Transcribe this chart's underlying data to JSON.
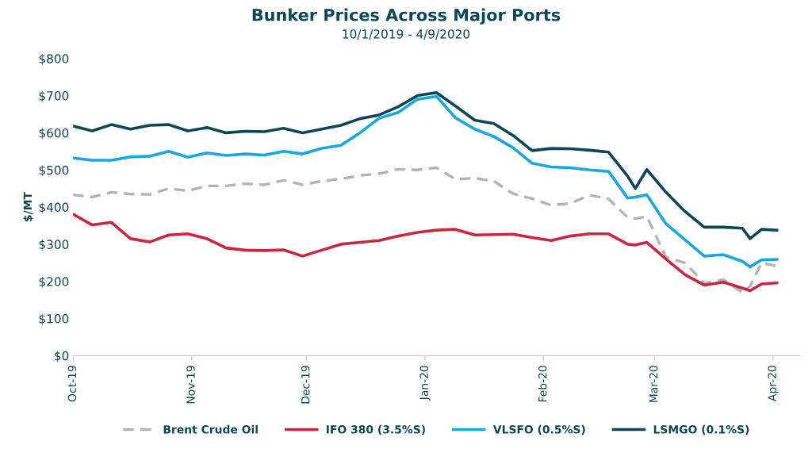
{
  "chart_data": {
    "type": "line",
    "title": "Bunker Prices Across Major Ports",
    "subtitle": "10/1/2019 - 4/9/2020",
    "ylabel": "$/MT",
    "x": [
      "2019-10-01",
      "2019-10-06",
      "2019-10-11",
      "2019-10-16",
      "2019-10-21",
      "2019-10-26",
      "2019-10-31",
      "2019-11-05",
      "2019-11-10",
      "2019-11-15",
      "2019-11-20",
      "2019-11-25",
      "2019-11-30",
      "2019-12-05",
      "2019-12-10",
      "2019-12-15",
      "2019-12-20",
      "2019-12-25",
      "2019-12-30",
      "2020-01-04",
      "2020-01-09",
      "2020-01-14",
      "2020-01-19",
      "2020-01-24",
      "2020-01-29",
      "2020-02-03",
      "2020-02-08",
      "2020-02-13",
      "2020-02-18",
      "2020-02-23",
      "2020-02-25",
      "2020-02-28",
      "2020-03-04",
      "2020-03-09",
      "2020-03-14",
      "2020-03-19",
      "2020-03-24",
      "2020-03-26",
      "2020-03-29",
      "2020-04-02"
    ],
    "series": [
      {
        "name": "Brent Crude Oil",
        "color": "#b3b3b3",
        "line_style": "dashed",
        "values": [
          433,
          427,
          440,
          435,
          434,
          450,
          444,
          457,
          457,
          463,
          460,
          472,
          460,
          470,
          476,
          485,
          490,
          502,
          500,
          506,
          475,
          478,
          470,
          436,
          423,
          405,
          410,
          432,
          422,
          372,
          369,
          375,
          265,
          250,
          195,
          205,
          170,
          187,
          250,
          241
        ]
      },
      {
        "name": "IFO 380 (3.5%S)",
        "color": "#c8283f",
        "line_style": "solid",
        "values": [
          381,
          352,
          359,
          315,
          306,
          325,
          328,
          315,
          290,
          284,
          283,
          285,
          268,
          284,
          300,
          305,
          310,
          322,
          332,
          338,
          340,
          325,
          326,
          327,
          318,
          310,
          322,
          328,
          328,
          300,
          298,
          305,
          260,
          218,
          190,
          198,
          182,
          175,
          193,
          196
        ]
      },
      {
        "name": "VLSFO (0.5%S)",
        "color": "#1aa7dc",
        "line_style": "solid",
        "values": [
          532,
          526,
          526,
          535,
          537,
          550,
          534,
          546,
          539,
          543,
          540,
          550,
          543,
          558,
          566,
          600,
          639,
          655,
          690,
          698,
          640,
          610,
          590,
          560,
          518,
          508,
          506,
          500,
          496,
          424,
          427,
          433,
          355,
          312,
          268,
          272,
          254,
          239,
          258,
          259
        ]
      },
      {
        "name": "LSMGO (0.1%S)",
        "color": "#0d4654",
        "line_style": "solid",
        "values": [
          618,
          605,
          622,
          610,
          620,
          622,
          605,
          614,
          600,
          604,
          603,
          612,
          600,
          610,
          620,
          638,
          648,
          670,
          700,
          708,
          672,
          634,
          625,
          593,
          552,
          558,
          557,
          553,
          548,
          483,
          450,
          501,
          440,
          388,
          346,
          346,
          343,
          315,
          340,
          338
        ]
      }
    ],
    "xlim": [
      "2019-10-01",
      "2020-04-08"
    ],
    "xticks": [
      {
        "value": "2019-10-01",
        "label": "Oct-19"
      },
      {
        "value": "2019-11-01",
        "label": "Nov-19"
      },
      {
        "value": "2019-12-01",
        "label": "Dec-19"
      },
      {
        "value": "2020-01-01",
        "label": "Jan-20"
      },
      {
        "value": "2020-02-01",
        "label": "Feb-20"
      },
      {
        "value": "2020-03-01",
        "label": "Mar-20"
      },
      {
        "value": "2020-04-01",
        "label": "Apr-20"
      }
    ],
    "ylim": [
      0,
      800
    ],
    "yticks": [
      {
        "value": 0,
        "label": "$0"
      },
      {
        "value": 100,
        "label": "$100"
      },
      {
        "value": 200,
        "label": "$200"
      },
      {
        "value": 300,
        "label": "$300"
      },
      {
        "value": 400,
        "label": "$400"
      },
      {
        "value": 500,
        "label": "$500"
      },
      {
        "value": 600,
        "label": "$600"
      },
      {
        "value": 700,
        "label": "$700"
      },
      {
        "value": 800,
        "label": "$800"
      }
    ],
    "grid": false,
    "legend": "bottom",
    "marker": "none"
  }
}
